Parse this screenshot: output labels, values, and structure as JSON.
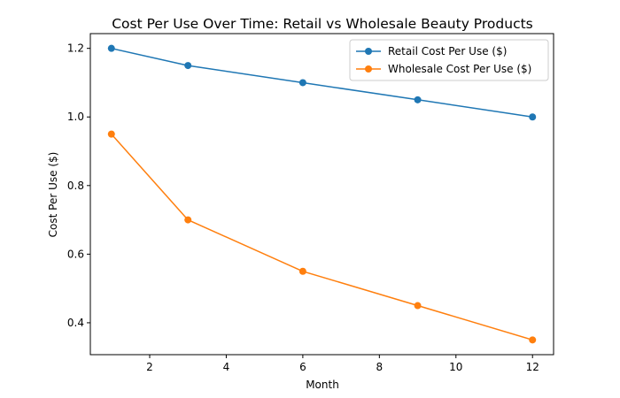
{
  "chart_data": {
    "type": "line",
    "title": "Cost Per Use Over Time: Retail vs Wholesale Beauty Products",
    "xlabel": "Month",
    "ylabel": "Cost Per Use ($)",
    "x": [
      1,
      3,
      6,
      9,
      12
    ],
    "series": [
      {
        "name": "Retail Cost Per Use ($)",
        "values": [
          1.2,
          1.15,
          1.1,
          1.05,
          1.0
        ],
        "color": "#1f77b4",
        "marker": "circle"
      },
      {
        "name": "Wholesale Cost Per Use ($)",
        "values": [
          0.95,
          0.7,
          0.55,
          0.45,
          0.35
        ],
        "color": "#ff7f0e",
        "marker": "circle"
      }
    ],
    "xlim": [
      0.45,
      12.55
    ],
    "ylim": [
      0.307,
      1.243
    ],
    "xticks": [
      2,
      4,
      6,
      8,
      10,
      12
    ],
    "xtick_labels": [
      "2",
      "4",
      "6",
      "8",
      "10",
      "12"
    ],
    "yticks": [
      0.4,
      0.6,
      0.8,
      1.0,
      1.2
    ],
    "ytick_labels": [
      "0.4",
      "0.6",
      "0.8",
      "1.0",
      "1.2"
    ],
    "grid": false,
    "legend_position": "upper right"
  }
}
